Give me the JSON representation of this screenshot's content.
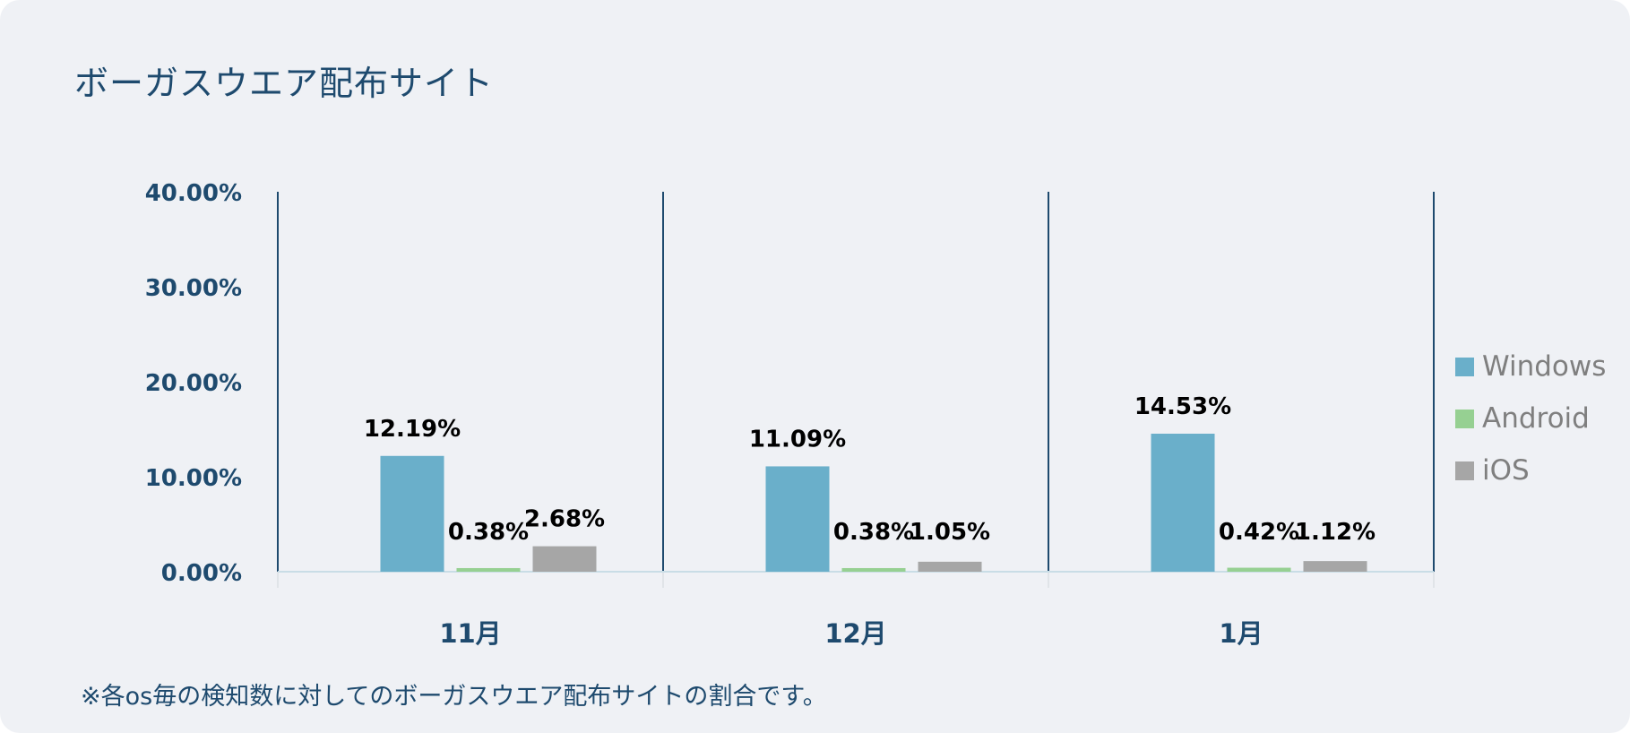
{
  "title": "ボーガスウエア配布サイト",
  "footnote": "※各os毎の検知数に対してのボーガスウエア配布サイトの割合です。",
  "chart_data": {
    "type": "bar",
    "categories": [
      "11月",
      "12月",
      "1月"
    ],
    "series": [
      {
        "name": "Windows",
        "values": [
          12.19,
          11.09,
          14.53
        ],
        "labels": [
          "12.19%",
          "11.09%",
          "14.53%"
        ],
        "color": "#6aafca"
      },
      {
        "name": "Android",
        "values": [
          0.38,
          0.38,
          0.42
        ],
        "labels": [
          "0.38%",
          "0.38%",
          "0.42%"
        ],
        "color": "#96d092"
      },
      {
        "name": "iOS",
        "values": [
          2.68,
          1.05,
          1.12
        ],
        "labels": [
          "2.68%",
          "1.05%",
          "1.12%"
        ],
        "color": "#a6a6a6"
      }
    ],
    "ylim": [
      0,
      40
    ],
    "yticks": [
      "0.00%",
      "10.00%",
      "20.00%",
      "30.00%",
      "40.00%"
    ],
    "legend_position": "right",
    "axis_color": "#1e4a6e",
    "label_color": "#000000"
  }
}
